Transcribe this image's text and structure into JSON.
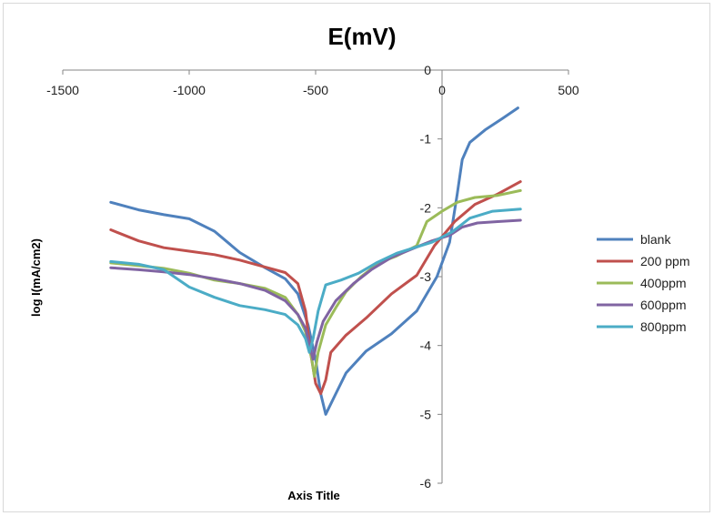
{
  "chart_data": {
    "type": "line",
    "title": "E(mV)",
    "xlabel": "Axis Title",
    "ylabel": "log I(mA/cm2)",
    "xlim": [
      -1500,
      500
    ],
    "ylim": [
      -6,
      0
    ],
    "x_ticks": [
      "-1500",
      "-1000",
      "-500",
      "0",
      "500"
    ],
    "y_ticks": [
      "0",
      "-1",
      "-2",
      "-3",
      "-4",
      "-5",
      "-6"
    ],
    "grid": false,
    "legend_position": "right",
    "series": [
      {
        "name": "blank",
        "color": "#4f81bd",
        "points": [
          [
            -1310,
            -1.92
          ],
          [
            -1200,
            -2.03
          ],
          [
            -1100,
            -2.1
          ],
          [
            -1000,
            -2.16
          ],
          [
            -900,
            -2.34
          ],
          [
            -800,
            -2.65
          ],
          [
            -700,
            -2.87
          ],
          [
            -620,
            -3.03
          ],
          [
            -570,
            -3.25
          ],
          [
            -530,
            -3.7
          ],
          [
            -500,
            -4.2
          ],
          [
            -480,
            -4.7
          ],
          [
            -460,
            -5.0
          ],
          [
            -420,
            -4.7
          ],
          [
            -380,
            -4.4
          ],
          [
            -300,
            -4.08
          ],
          [
            -200,
            -3.83
          ],
          [
            -100,
            -3.5
          ],
          [
            -20,
            -3.0
          ],
          [
            30,
            -2.5
          ],
          [
            60,
            -1.8
          ],
          [
            80,
            -1.3
          ],
          [
            110,
            -1.05
          ],
          [
            170,
            -0.87
          ],
          [
            240,
            -0.7
          ],
          [
            300,
            -0.55
          ]
        ]
      },
      {
        "name": "200 ppm",
        "color": "#c0504d",
        "points": [
          [
            -1310,
            -2.32
          ],
          [
            -1200,
            -2.48
          ],
          [
            -1100,
            -2.58
          ],
          [
            -1000,
            -2.63
          ],
          [
            -900,
            -2.68
          ],
          [
            -800,
            -2.76
          ],
          [
            -700,
            -2.86
          ],
          [
            -620,
            -2.94
          ],
          [
            -570,
            -3.1
          ],
          [
            -540,
            -3.5
          ],
          [
            -520,
            -4.1
          ],
          [
            -500,
            -4.55
          ],
          [
            -480,
            -4.7
          ],
          [
            -460,
            -4.5
          ],
          [
            -440,
            -4.1
          ],
          [
            -380,
            -3.85
          ],
          [
            -300,
            -3.6
          ],
          [
            -200,
            -3.25
          ],
          [
            -100,
            -2.98
          ],
          [
            -30,
            -2.55
          ],
          [
            50,
            -2.2
          ],
          [
            130,
            -1.95
          ],
          [
            220,
            -1.8
          ],
          [
            310,
            -1.62
          ]
        ]
      },
      {
        "name": "400ppm",
        "color": "#9bbb59",
        "points": [
          [
            -1310,
            -2.8
          ],
          [
            -1200,
            -2.84
          ],
          [
            -1100,
            -2.88
          ],
          [
            -1000,
            -2.95
          ],
          [
            -900,
            -3.05
          ],
          [
            -800,
            -3.1
          ],
          [
            -700,
            -3.17
          ],
          [
            -620,
            -3.3
          ],
          [
            -570,
            -3.55
          ],
          [
            -540,
            -3.8
          ],
          [
            -515,
            -4.2
          ],
          [
            -505,
            -4.45
          ],
          [
            -490,
            -4.1
          ],
          [
            -460,
            -3.7
          ],
          [
            -420,
            -3.45
          ],
          [
            -380,
            -3.22
          ],
          [
            -320,
            -3.0
          ],
          [
            -250,
            -2.8
          ],
          [
            -180,
            -2.7
          ],
          [
            -100,
            -2.55
          ],
          [
            -60,
            -2.2
          ],
          [
            0,
            -2.05
          ],
          [
            60,
            -1.92
          ],
          [
            130,
            -1.85
          ],
          [
            220,
            -1.82
          ],
          [
            310,
            -1.75
          ]
        ]
      },
      {
        "name": "600ppm",
        "color": "#8064a2",
        "points": [
          [
            -1310,
            -2.87
          ],
          [
            -1200,
            -2.9
          ],
          [
            -1100,
            -2.93
          ],
          [
            -1000,
            -2.97
          ],
          [
            -900,
            -3.03
          ],
          [
            -800,
            -3.1
          ],
          [
            -700,
            -3.2
          ],
          [
            -620,
            -3.35
          ],
          [
            -570,
            -3.55
          ],
          [
            -540,
            -3.75
          ],
          [
            -520,
            -4.05
          ],
          [
            -510,
            -4.2
          ],
          [
            -495,
            -3.95
          ],
          [
            -470,
            -3.65
          ],
          [
            -420,
            -3.35
          ],
          [
            -350,
            -3.1
          ],
          [
            -280,
            -2.9
          ],
          [
            -200,
            -2.72
          ],
          [
            -120,
            -2.6
          ],
          [
            -40,
            -2.48
          ],
          [
            30,
            -2.4
          ],
          [
            80,
            -2.28
          ],
          [
            140,
            -2.22
          ],
          [
            220,
            -2.2
          ],
          [
            310,
            -2.18
          ]
        ]
      },
      {
        "name": "800ppm",
        "color": "#4bacc6",
        "points": [
          [
            -1310,
            -2.78
          ],
          [
            -1200,
            -2.82
          ],
          [
            -1100,
            -2.9
          ],
          [
            -1000,
            -3.15
          ],
          [
            -900,
            -3.3
          ],
          [
            -800,
            -3.42
          ],
          [
            -700,
            -3.48
          ],
          [
            -620,
            -3.55
          ],
          [
            -570,
            -3.7
          ],
          [
            -540,
            -3.9
          ],
          [
            -525,
            -4.1
          ],
          [
            -510,
            -3.9
          ],
          [
            -490,
            -3.5
          ],
          [
            -460,
            -3.12
          ],
          [
            -400,
            -3.05
          ],
          [
            -330,
            -2.95
          ],
          [
            -260,
            -2.8
          ],
          [
            -180,
            -2.66
          ],
          [
            -110,
            -2.58
          ],
          [
            -40,
            -2.5
          ],
          [
            40,
            -2.35
          ],
          [
            110,
            -2.15
          ],
          [
            200,
            -2.05
          ],
          [
            310,
            -2.02
          ]
        ]
      }
    ]
  }
}
